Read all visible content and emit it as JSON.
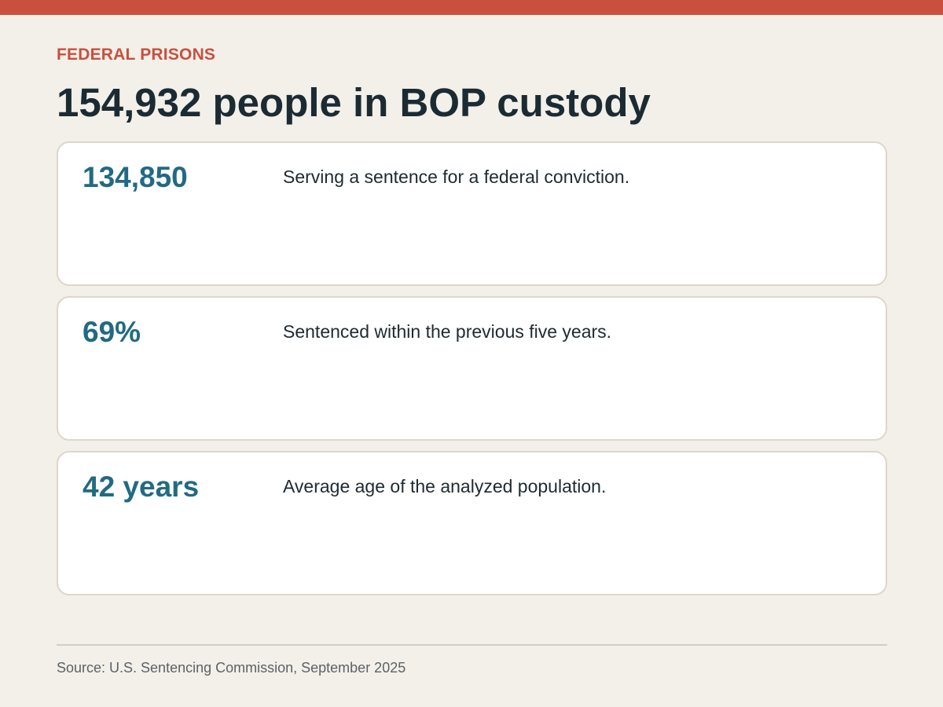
{
  "header": {
    "eyebrow": "FEDERAL PRISONS",
    "title": "154,932 people in BOP custody"
  },
  "stats": [
    {
      "value": "134,850",
      "description": "Serving a sentence for a federal conviction."
    },
    {
      "value": "69%",
      "description": "Sentenced within the previous five years."
    },
    {
      "value": "42 years",
      "description": "Average age of the analyzed population."
    }
  ],
  "footer": {
    "source": "Source: U.S. Sentencing Commission, September 2025"
  },
  "colors": {
    "accent": "#c94f3f",
    "value": "#226a83",
    "background": "#f3f0e9"
  }
}
